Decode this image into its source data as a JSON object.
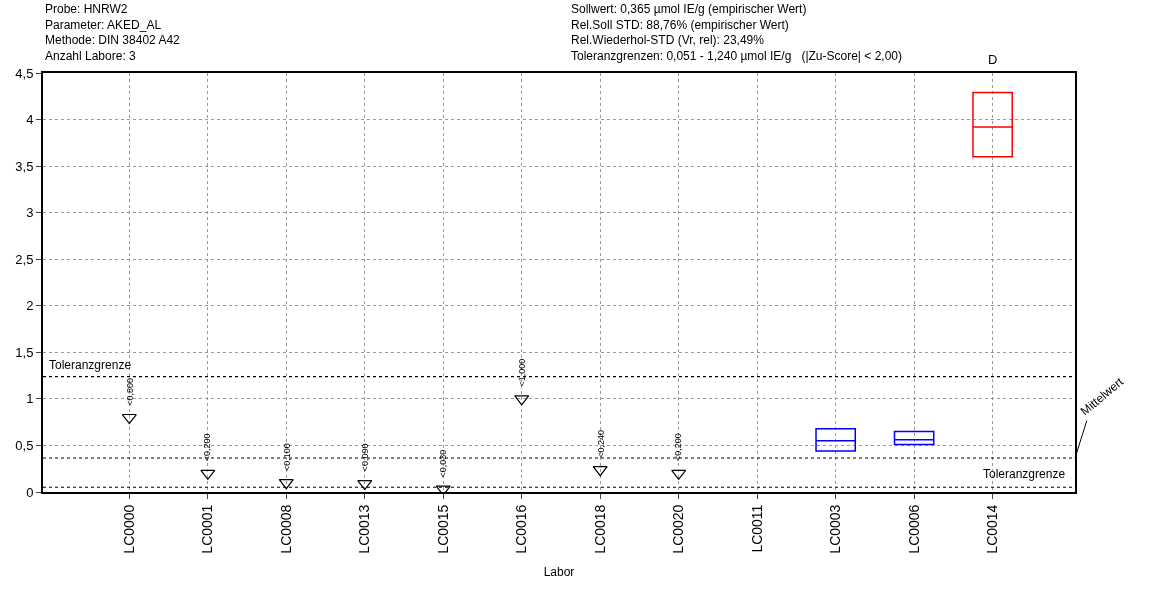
{
  "chart_data": {
    "type": "box",
    "title": "Probe: HNRW2\nParameter: AKED_AL\nMethode: DIN 38402 A42\nAnzahl Labore: 3",
    "subtitle": "Sollwert: 0,365 µmol IE/g (empirischer Wert)\nRel.Soll STD: 88,76% (empirischer Wert)\nRel.Wiederhol-STD (Vr, rel): 23,49%\nToleranzgrenzen: 0,051 - 1,240 µmol IE/g   (|Zu-Score| < 2,00)",
    "xlabel": "Labor",
    "categories": [
      "LC0000",
      "LC0001",
      "LC0008",
      "LC0013",
      "LC0015",
      "LC0016",
      "LC0018",
      "LC0020",
      "LC0011",
      "LC0003",
      "LC0006",
      "LC0014"
    ],
    "series": [
      {
        "colors": [
          null,
          null,
          null,
          null,
          null,
          null,
          null,
          null,
          null,
          "#0000ff",
          "#0000ff",
          "#ff0000"
        ],
        "boxes": [
          null,
          null,
          null,
          null,
          null,
          null,
          null,
          null,
          null,
          {
            "low": 0.44,
            "q1": 0.44,
            "median": 0.55,
            "q3": 0.68,
            "high": 0.68
          },
          {
            "low": 0.51,
            "q1": 0.51,
            "median": 0.56,
            "q3": 0.65,
            "high": 0.65
          },
          {
            "low": 3.6,
            "q1": 3.6,
            "median": 3.92,
            "q3": 4.29,
            "high": 4.29
          }
        ]
      },
      {
        "type": "scatter",
        "color": "#000000",
        "marker": "triangle",
        "values": [
          0.8,
          0.2,
          0.1,
          0.09,
          0.03,
          1.0,
          0.24,
          0.2,
          null,
          null,
          null,
          null
        ],
        "value_labels": [
          "<0,800",
          "<0,200",
          "<0,100",
          "<0,090",
          "<0,030",
          "<1,000",
          "<0,240",
          "<0,200",
          null,
          null,
          null,
          null
        ]
      }
    ],
    "ylim": [
      0,
      4.5
    ],
    "yticks": [
      0,
      {
        "value": 0.5,
        "label": "0,5"
      },
      1,
      {
        "value": 1.5,
        "label": "1,5"
      },
      2,
      {
        "value": 2.5,
        "label": "2,5"
      },
      3,
      {
        "value": 3.5,
        "label": "3,5"
      },
      4,
      {
        "value": 4.5,
        "label": "4,5"
      }
    ],
    "ref_lines": [
      {
        "axis": "y",
        "value": 0.051,
        "label": "Toleranzgrenze",
        "color": "#000000",
        "line_style": "dotted"
      },
      {
        "axis": "y",
        "value": 0.365,
        "label": "Mittelwert",
        "color": "#000000",
        "line_style": "dotted"
      },
      {
        "axis": "y",
        "value": 1.24,
        "label": "Toleranzgrenze",
        "color": "#000000",
        "line_style": "dotted"
      }
    ],
    "annotations": [
      "D"
    ],
    "grid": true
  }
}
